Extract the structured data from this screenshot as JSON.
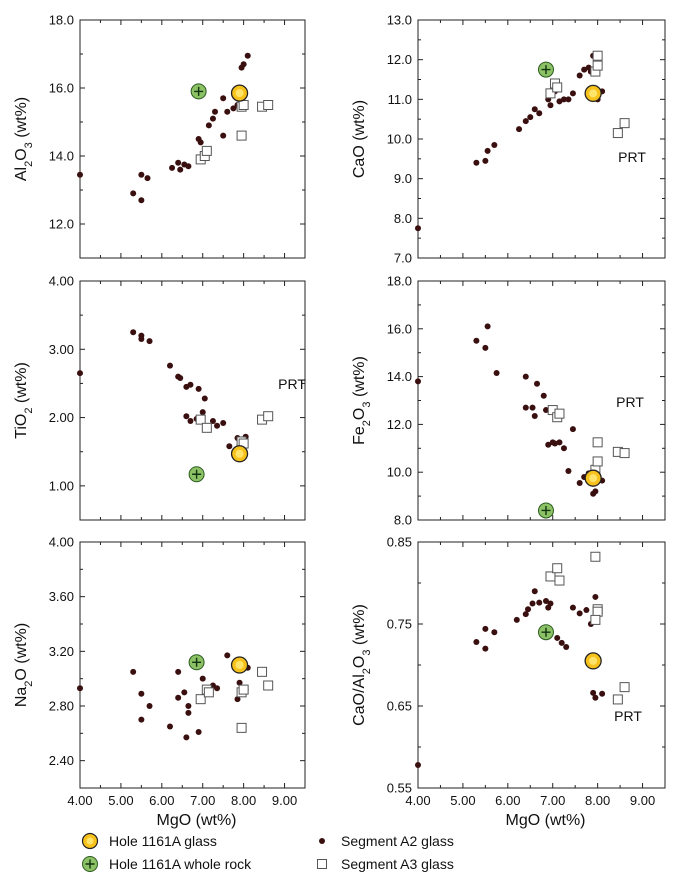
{
  "chart_data": [
    {
      "type": "scatter",
      "xlabel": "",
      "ylabel": "Al2O3 (wt%)",
      "xlim": [
        4.0,
        9.5
      ],
      "ylim": [
        11.0,
        18.0
      ],
      "yticks": [
        "12.0",
        "14.0",
        "16.0",
        "18.0"
      ],
      "xticks": [],
      "annotation": "",
      "series": [
        {
          "name": "Segment A2 glass",
          "marker": "dot",
          "points": [
            [
              4.0,
              13.45
            ],
            [
              5.3,
              12.9
            ],
            [
              5.5,
              12.7
            ],
            [
              5.5,
              13.45
            ],
            [
              5.65,
              13.35
            ],
            [
              6.25,
              13.65
            ],
            [
              6.4,
              13.8
            ],
            [
              6.45,
              13.6
            ],
            [
              6.55,
              13.75
            ],
            [
              6.65,
              13.7
            ],
            [
              6.9,
              14.5
            ],
            [
              6.95,
              14.4
            ],
            [
              7.05,
              14.0
            ],
            [
              7.15,
              14.9
            ],
            [
              7.25,
              15.1
            ],
            [
              7.3,
              15.3
            ],
            [
              7.5,
              14.6
            ],
            [
              7.6,
              15.3
            ],
            [
              7.75,
              15.4
            ],
            [
              7.85,
              15.5
            ],
            [
              7.85,
              15.7
            ],
            [
              7.95,
              16.6
            ],
            [
              8.0,
              16.7
            ],
            [
              8.1,
              16.95
            ],
            [
              7.5,
              15.7
            ]
          ]
        },
        {
          "name": "Segment A3 glass",
          "marker": "square",
          "points": [
            [
              6.95,
              13.9
            ],
            [
              7.05,
              14.0
            ],
            [
              7.1,
              14.15
            ],
            [
              7.95,
              14.6
            ],
            [
              7.95,
              15.45
            ],
            [
              8.0,
              15.5
            ],
            [
              8.45,
              15.45
            ],
            [
              8.6,
              15.5
            ]
          ]
        },
        {
          "name": "Hole 1161A glass",
          "marker": "glass",
          "points": [
            [
              7.9,
              15.85
            ]
          ]
        },
        {
          "name": "Hole 1161A whole rock",
          "marker": "rock",
          "points": [
            [
              6.9,
              15.9
            ]
          ]
        }
      ]
    },
    {
      "type": "scatter",
      "xlabel": "",
      "ylabel": "CaO (wt%)",
      "xlim": [
        4.0,
        9.5
      ],
      "ylim": [
        7.0,
        13.0
      ],
      "yticks": [
        "7.0",
        "8.0",
        "9.0",
        "10.0",
        "11.0",
        "12.0",
        "13.0"
      ],
      "xticks": [],
      "annotation": "PRT",
      "series": [
        {
          "name": "Segment A2 glass",
          "marker": "dot",
          "points": [
            [
              4.0,
              7.75
            ],
            [
              5.3,
              9.4
            ],
            [
              5.5,
              9.45
            ],
            [
              5.55,
              9.7
            ],
            [
              5.7,
              9.85
            ],
            [
              6.25,
              10.25
            ],
            [
              6.4,
              10.45
            ],
            [
              6.5,
              10.55
            ],
            [
              6.6,
              10.75
            ],
            [
              6.7,
              10.65
            ],
            [
              6.9,
              11.0
            ],
            [
              6.95,
              10.85
            ],
            [
              7.05,
              11.2
            ],
            [
              7.15,
              10.95
            ],
            [
              7.25,
              11.0
            ],
            [
              7.35,
              11.0
            ],
            [
              7.45,
              11.15
            ],
            [
              7.6,
              11.6
            ],
            [
              7.7,
              11.75
            ],
            [
              7.8,
              11.8
            ],
            [
              7.85,
              11.7
            ],
            [
              7.95,
              11.2
            ],
            [
              8.0,
              11.0
            ],
            [
              8.1,
              11.2
            ],
            [
              7.9,
              12.1
            ]
          ]
        },
        {
          "name": "Segment A3 glass",
          "marker": "square",
          "points": [
            [
              6.95,
              11.15
            ],
            [
              7.05,
              11.4
            ],
            [
              7.1,
              11.3
            ],
            [
              7.95,
              11.7
            ],
            [
              8.0,
              11.85
            ],
            [
              8.0,
              12.1
            ],
            [
              8.45,
              10.15
            ],
            [
              8.6,
              10.4
            ]
          ]
        },
        {
          "name": "Hole 1161A glass",
          "marker": "glass",
          "points": [
            [
              7.9,
              11.15
            ]
          ]
        },
        {
          "name": "Hole 1161A whole rock",
          "marker": "rock",
          "points": [
            [
              6.85,
              11.75
            ]
          ]
        }
      ]
    },
    {
      "type": "scatter",
      "xlabel": "",
      "ylabel": "TiO2 (wt%)",
      "xlim": [
        4.0,
        9.5
      ],
      "ylim": [
        0.5,
        4.0
      ],
      "yticks": [
        "1.00",
        "2.00",
        "3.00",
        "4.00"
      ],
      "xticks": [],
      "annotation": "PRT",
      "series": [
        {
          "name": "Segment A2 glass",
          "marker": "dot",
          "points": [
            [
              4.0,
              2.65
            ],
            [
              5.3,
              3.25
            ],
            [
              5.5,
              3.15
            ],
            [
              5.5,
              3.2
            ],
            [
              5.7,
              3.12
            ],
            [
              6.2,
              2.76
            ],
            [
              6.4,
              2.6
            ],
            [
              6.45,
              2.58
            ],
            [
              6.6,
              2.45
            ],
            [
              6.7,
              2.48
            ],
            [
              6.9,
              2.42
            ],
            [
              7.05,
              2.28
            ],
            [
              6.6,
              2.02
            ],
            [
              6.85,
              1.98
            ],
            [
              6.7,
              1.95
            ],
            [
              7.0,
              2.08
            ],
            [
              7.25,
              1.95
            ],
            [
              7.35,
              1.88
            ],
            [
              7.5,
              1.92
            ],
            [
              7.65,
              1.58
            ],
            [
              7.85,
              1.7
            ],
            [
              7.95,
              1.68
            ],
            [
              8.05,
              1.72
            ],
            [
              7.9,
              1.6
            ]
          ]
        },
        {
          "name": "Segment A3 glass",
          "marker": "square",
          "points": [
            [
              6.95,
              1.97
            ],
            [
              7.1,
              1.85
            ],
            [
              7.95,
              1.65
            ],
            [
              8.0,
              1.62
            ],
            [
              8.45,
              1.97
            ],
            [
              8.6,
              2.02
            ]
          ]
        },
        {
          "name": "Hole 1161A glass",
          "marker": "glass",
          "points": [
            [
              7.9,
              1.47
            ]
          ]
        },
        {
          "name": "Hole 1161A whole rock",
          "marker": "rock",
          "points": [
            [
              6.85,
              1.17
            ]
          ]
        }
      ]
    },
    {
      "type": "scatter",
      "xlabel": "",
      "ylabel": "Fe2O3 (wt%)",
      "xlim": [
        4.0,
        9.5
      ],
      "ylim": [
        8.0,
        18.0
      ],
      "yticks": [
        "8.0",
        "10.0",
        "12.0",
        "14.0",
        "16.0",
        "18.0"
      ],
      "xticks": [],
      "annotation": "PRT",
      "series": [
        {
          "name": "Segment A2 glass",
          "marker": "dot",
          "points": [
            [
              4.0,
              13.8
            ],
            [
              5.3,
              15.5
            ],
            [
              5.5,
              15.2
            ],
            [
              5.55,
              16.1
            ],
            [
              5.75,
              14.15
            ],
            [
              6.4,
              14.0
            ],
            [
              6.4,
              12.7
            ],
            [
              6.55,
              12.7
            ],
            [
              6.6,
              12.35
            ],
            [
              6.65,
              13.7
            ],
            [
              6.8,
              13.2
            ],
            [
              6.85,
              12.6
            ],
            [
              6.9,
              11.15
            ],
            [
              7.0,
              11.25
            ],
            [
              7.05,
              11.2
            ],
            [
              7.15,
              11.25
            ],
            [
              7.25,
              11.0
            ],
            [
              7.35,
              10.05
            ],
            [
              7.45,
              11.8
            ],
            [
              7.6,
              9.55
            ],
            [
              7.7,
              9.8
            ],
            [
              7.8,
              9.95
            ],
            [
              7.85,
              9.55
            ],
            [
              7.9,
              9.1
            ],
            [
              7.95,
              9.2
            ],
            [
              8.1,
              9.65
            ]
          ]
        },
        {
          "name": "Segment A3 glass",
          "marker": "square",
          "points": [
            [
              7.0,
              12.6
            ],
            [
              7.1,
              12.3
            ],
            [
              7.15,
              12.45
            ],
            [
              7.95,
              10.1
            ],
            [
              8.0,
              10.45
            ],
            [
              8.0,
              11.25
            ],
            [
              8.45,
              10.85
            ],
            [
              8.6,
              10.8
            ]
          ]
        },
        {
          "name": "Hole 1161A glass",
          "marker": "glass",
          "points": [
            [
              7.9,
              9.75
            ]
          ]
        },
        {
          "name": "Hole 1161A whole rock",
          "marker": "rock",
          "points": [
            [
              6.85,
              8.4
            ]
          ]
        }
      ]
    },
    {
      "type": "scatter",
      "xlabel": "MgO (wt%)",
      "ylabel": "Na2O (wt%)",
      "xlim": [
        4.0,
        9.5
      ],
      "ylim": [
        2.2,
        4.0
      ],
      "yticks": [
        "2.40",
        "2.80",
        "3.20",
        "3.60",
        "4.00"
      ],
      "xticks": [
        "4.00",
        "5.00",
        "6.00",
        "7.00",
        "8.00",
        "9.00"
      ],
      "annotation": "",
      "series": [
        {
          "name": "Segment A2 glass",
          "marker": "dot",
          "points": [
            [
              4.0,
              2.93
            ],
            [
              5.3,
              3.05
            ],
            [
              5.5,
              2.89
            ],
            [
              5.5,
              2.7
            ],
            [
              5.7,
              2.8
            ],
            [
              6.2,
              2.65
            ],
            [
              6.4,
              3.05
            ],
            [
              6.4,
              2.86
            ],
            [
              6.55,
              2.9
            ],
            [
              6.6,
              2.57
            ],
            [
              6.65,
              2.75
            ],
            [
              6.65,
              2.8
            ],
            [
              6.9,
              2.61
            ],
            [
              7.0,
              3.0
            ],
            [
              7.1,
              2.9
            ],
            [
              7.25,
              2.95
            ],
            [
              7.35,
              2.93
            ],
            [
              7.6,
              3.17
            ],
            [
              7.85,
              2.85
            ],
            [
              7.9,
              2.97
            ],
            [
              7.95,
              3.1
            ],
            [
              8.05,
              2.92
            ],
            [
              8.1,
              3.08
            ]
          ]
        },
        {
          "name": "Segment A3 glass",
          "marker": "square",
          "points": [
            [
              6.95,
              2.85
            ],
            [
              7.1,
              2.92
            ],
            [
              7.15,
              2.9
            ],
            [
              7.95,
              2.9
            ],
            [
              8.0,
              2.92
            ],
            [
              7.95,
              2.64
            ],
            [
              8.45,
              3.05
            ],
            [
              8.6,
              2.95
            ]
          ]
        },
        {
          "name": "Hole 1161A glass",
          "marker": "glass",
          "points": [
            [
              7.9,
              3.1
            ]
          ]
        },
        {
          "name": "Hole 1161A whole rock",
          "marker": "rock",
          "points": [
            [
              6.85,
              3.12
            ]
          ]
        }
      ]
    },
    {
      "type": "scatter",
      "xlabel": "MgO (wt%)",
      "ylabel": "CaO/Al2O3 (wt%)",
      "xlim": [
        4.0,
        9.5
      ],
      "ylim": [
        0.55,
        0.85
      ],
      "yticks": [
        "0.55",
        "0.65",
        "0.75",
        "0.85"
      ],
      "xticks": [
        "4.00",
        "5.00",
        "6.00",
        "7.00",
        "8.00",
        "9.00"
      ],
      "annotation": "PRT",
      "series": [
        {
          "name": "Segment A2 glass",
          "marker": "dot",
          "points": [
            [
              4.0,
              0.578
            ],
            [
              5.3,
              0.728
            ],
            [
              5.5,
              0.72
            ],
            [
              5.5,
              0.744
            ],
            [
              5.7,
              0.74
            ],
            [
              6.2,
              0.755
            ],
            [
              6.4,
              0.762
            ],
            [
              6.45,
              0.768
            ],
            [
              6.55,
              0.775
            ],
            [
              6.6,
              0.79
            ],
            [
              6.7,
              0.776
            ],
            [
              6.85,
              0.778
            ],
            [
              6.9,
              0.77
            ],
            [
              6.95,
              0.775
            ],
            [
              7.1,
              0.733
            ],
            [
              7.2,
              0.727
            ],
            [
              7.3,
              0.722
            ],
            [
              7.45,
              0.77
            ],
            [
              7.6,
              0.763
            ],
            [
              7.75,
              0.767
            ],
            [
              7.85,
              0.75
            ],
            [
              7.95,
              0.783
            ],
            [
              7.9,
              0.666
            ],
            [
              7.95,
              0.66
            ],
            [
              8.1,
              0.665
            ]
          ]
        },
        {
          "name": "Segment A3 glass",
          "marker": "square",
          "points": [
            [
              6.95,
              0.808
            ],
            [
              7.1,
              0.818
            ],
            [
              7.15,
              0.803
            ],
            [
              7.95,
              0.832
            ],
            [
              8.0,
              0.768
            ],
            [
              8.0,
              0.765
            ],
            [
              7.95,
              0.755
            ],
            [
              8.45,
              0.658
            ],
            [
              8.6,
              0.673
            ]
          ]
        },
        {
          "name": "Hole 1161A glass",
          "marker": "glass",
          "points": [
            [
              7.9,
              0.705
            ]
          ]
        },
        {
          "name": "Hole 1161A whole rock",
          "marker": "rock",
          "points": [
            [
              6.85,
              0.74
            ]
          ]
        }
      ]
    }
  ],
  "legend": {
    "items": [
      {
        "label": "Hole 1161A glass",
        "marker": "glass"
      },
      {
        "label": "Segment A2 glass",
        "marker": "dot"
      },
      {
        "label": "Hole 1161A whole rock",
        "marker": "rock"
      },
      {
        "label": "Segment A3 glass",
        "marker": "square"
      }
    ]
  },
  "colors": {
    "dot": "#3a0f0f",
    "square_stroke": "#555555",
    "glass_fill": "#f7c21b",
    "glass_inner": "#ffe46b",
    "rock_fill": "#8cc265",
    "axis": "#222222"
  }
}
